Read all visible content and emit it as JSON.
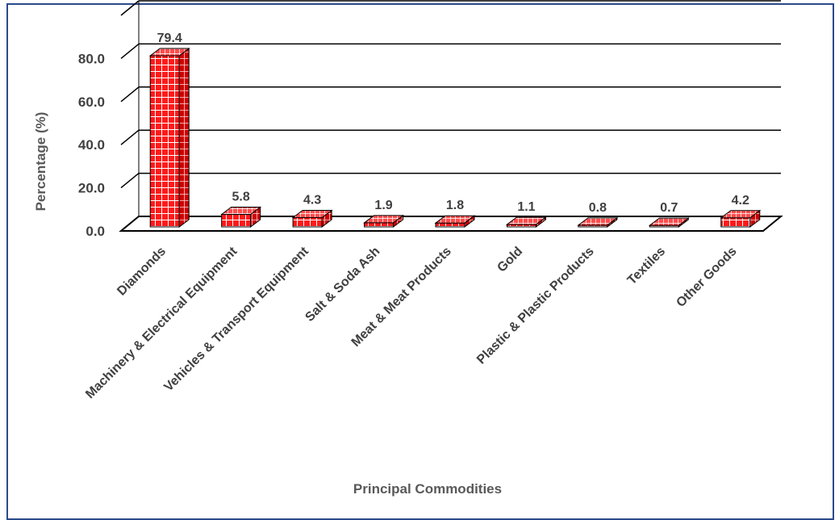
{
  "chart_data": {
    "type": "bar",
    "style": "3d-column",
    "categories": [
      "Diamonds",
      "Machinery & Electrical Equipment",
      "Vehicles & Transport Equipment",
      "Salt & Soda Ash",
      "Meat & Meat Products",
      "Gold",
      "Plastic & Plastic Products",
      "Textiles",
      "Other Goods"
    ],
    "values": [
      79.4,
      5.8,
      4.3,
      1.9,
      1.8,
      1.1,
      0.8,
      0.7,
      4.2
    ],
    "data_labels": [
      "79.4",
      "5.8",
      "4.3",
      "1.9",
      "1.8",
      "1.1",
      "0.8",
      "0.7",
      "4.2"
    ],
    "yticks": [
      "0.0",
      "20.0",
      "40.0",
      "60.0",
      "80.0"
    ],
    "ylim": [
      0,
      100
    ],
    "xlabel": "Principal Commodities",
    "ylabel": "Percentage (%)",
    "grid": true,
    "legend": "none",
    "colors": {
      "bar_fill": "#ff1a1a",
      "bar_pattern": "#ffffff",
      "grid": "#000000",
      "text": "#404040",
      "border": "#2b4a8c"
    }
  }
}
